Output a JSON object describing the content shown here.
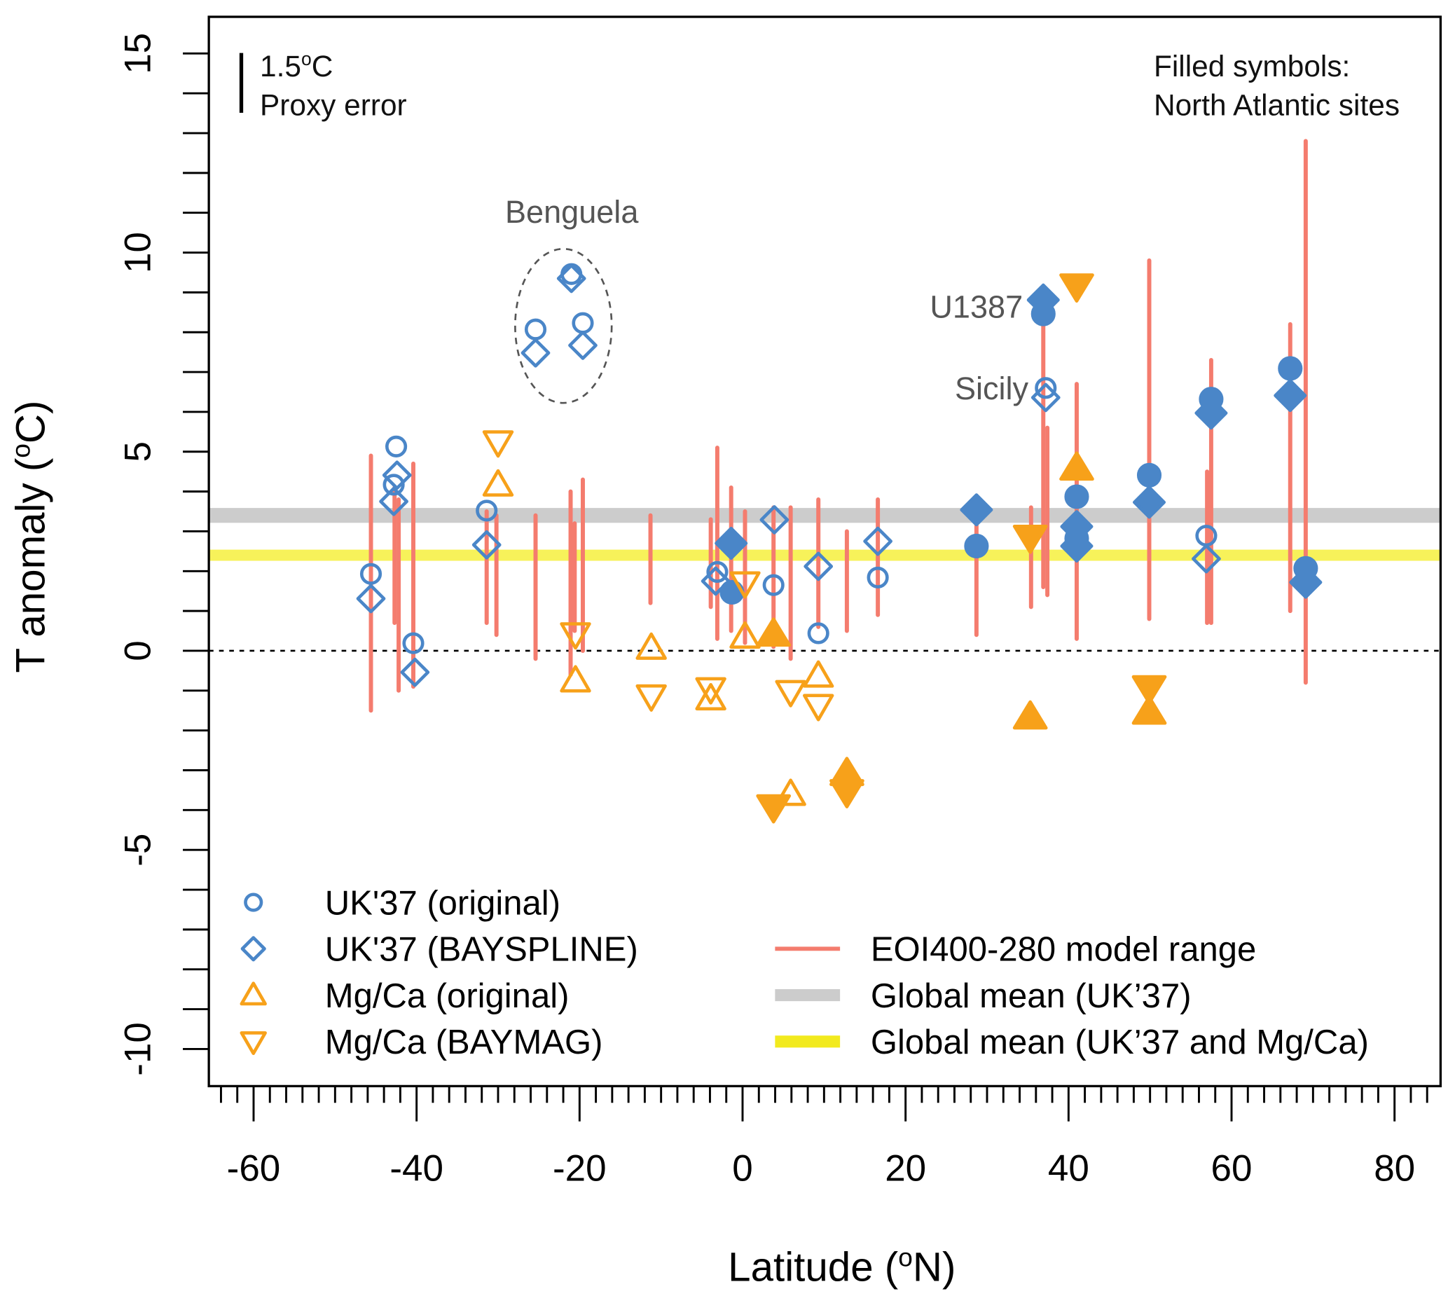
{
  "chart_data": {
    "type": "scatter",
    "xlabel": {
      "prefix": "Latitude (",
      "sup": "o",
      "suffix": "N)"
    },
    "ylabel": {
      "prefix": "T anomaly (",
      "sup": "o",
      "suffix": "C)"
    },
    "xlim": [
      -65.9,
      85.8
    ],
    "ylim": [
      -10.9,
      15.9
    ],
    "xticks": [
      -60,
      -40,
      -20,
      0,
      20,
      40,
      60,
      80
    ],
    "xminor_step": 2,
    "yticks": [
      -10,
      -5,
      0,
      5,
      10,
      15
    ],
    "yminor_step": 1,
    "zero_line": 0,
    "colors": {
      "blue": "#4a86c8",
      "orange": "#f7a11a",
      "model": "#f47c6e",
      "grey": "#cccccc",
      "yellow": "#f7f25a"
    },
    "series": [
      {
        "name": "UK'37 (original)",
        "marker": "circle",
        "color": "#4a86c8",
        "open": [
          [
            -45.6,
            1.93
          ],
          [
            -42.5,
            5.13
          ],
          [
            -42.8,
            4.17
          ],
          [
            -40.4,
            0.19
          ],
          [
            -31.4,
            3.52
          ],
          [
            -25.4,
            8.07
          ],
          [
            -21.0,
            9.46
          ],
          [
            -19.6,
            8.23
          ],
          [
            -3.1,
            1.98
          ],
          [
            3.8,
            1.65
          ],
          [
            9.3,
            0.44
          ],
          [
            16.6,
            1.84
          ],
          [
            37.2,
            6.6
          ],
          [
            56.9,
            2.89
          ]
        ],
        "filled": [
          [
            -1.3,
            1.47
          ],
          [
            28.7,
            2.63
          ],
          [
            36.9,
            8.46
          ],
          [
            41.0,
            3.87
          ],
          [
            41.0,
            2.82
          ],
          [
            49.9,
            4.41
          ],
          [
            57.5,
            6.32
          ],
          [
            67.2,
            7.09
          ],
          [
            69.1,
            2.07
          ]
        ]
      },
      {
        "name": "UK'37 (BAYSPLINE)",
        "marker": "diamond",
        "color": "#4a86c8",
        "open": [
          [
            -45.6,
            1.31
          ],
          [
            -42.4,
            4.41
          ],
          [
            -42.8,
            3.75
          ],
          [
            -40.2,
            -0.54
          ],
          [
            -31.4,
            2.66
          ],
          [
            -25.4,
            7.48
          ],
          [
            -21.0,
            9.35
          ],
          [
            -19.6,
            7.67
          ],
          [
            -3.3,
            1.75
          ],
          [
            3.9,
            3.29
          ],
          [
            9.3,
            2.12
          ],
          [
            16.6,
            2.75
          ],
          [
            37.2,
            6.36
          ],
          [
            56.9,
            2.31
          ]
        ],
        "filled": [
          [
            -1.4,
            2.7
          ],
          [
            28.7,
            3.54
          ],
          [
            36.9,
            8.81
          ],
          [
            41.0,
            3.12
          ],
          [
            41.0,
            2.63
          ],
          [
            49.9,
            3.73
          ],
          [
            57.5,
            5.97
          ],
          [
            67.2,
            6.41
          ],
          [
            69.1,
            1.72
          ]
        ]
      },
      {
        "name": "Mg/Ca (original)",
        "marker": "triangle-up",
        "color": "#f7a11a",
        "open": [
          [
            -30.0,
            4.17
          ],
          [
            -20.5,
            -0.75
          ],
          [
            -11.2,
            0.07
          ],
          [
            -3.9,
            -1.2
          ],
          [
            0.3,
            0.35
          ],
          [
            5.9,
            -3.6
          ],
          [
            9.3,
            -0.63
          ]
        ],
        "filled": [
          [
            3.8,
            0.4
          ],
          [
            12.8,
            -3.1
          ],
          [
            35.3,
            -1.68
          ],
          [
            41.0,
            4.57
          ],
          [
            49.9,
            -1.56
          ]
        ]
      },
      {
        "name": "Mg/Ca (BAYMAG)",
        "marker": "triangle-down",
        "color": "#f7a11a",
        "open": [
          [
            -30.0,
            5.24
          ],
          [
            -20.5,
            0.42
          ],
          [
            -11.2,
            -1.14
          ],
          [
            -3.9,
            -0.96
          ],
          [
            0.3,
            1.7
          ],
          [
            5.9,
            -1.03
          ],
          [
            9.3,
            -1.38
          ]
        ],
        "filled": [
          [
            3.8,
            -3.9
          ],
          [
            12.8,
            -3.52
          ],
          [
            35.3,
            2.87
          ],
          [
            41.0,
            9.18
          ],
          [
            49.9,
            -0.91
          ]
        ]
      }
    ],
    "model_range": {
      "name": "EOI400-280 model range",
      "ranges": [
        [
          -45.6,
          -1.5,
          4.9
        ],
        [
          -42.7,
          0.7,
          4.1
        ],
        [
          -42.2,
          -1.0,
          3.8
        ],
        [
          -40.4,
          -0.9,
          4.7
        ],
        [
          -31.4,
          0.7,
          3.5
        ],
        [
          -30.2,
          0.4,
          3.4
        ],
        [
          -25.4,
          -0.2,
          3.4
        ],
        [
          -21.1,
          -0.6,
          4.0
        ],
        [
          -20.6,
          0.5,
          3.2
        ],
        [
          -19.6,
          0.0,
          4.3
        ],
        [
          -11.3,
          1.2,
          3.4
        ],
        [
          -3.9,
          1.1,
          3.3
        ],
        [
          -3.1,
          0.3,
          5.1
        ],
        [
          -1.4,
          0.5,
          4.1
        ],
        [
          0.3,
          0.2,
          3.5
        ],
        [
          3.8,
          0.1,
          3.6
        ],
        [
          5.9,
          -0.2,
          3.6
        ],
        [
          9.3,
          0.6,
          3.8
        ],
        [
          12.8,
          0.5,
          3.0
        ],
        [
          16.6,
          0.9,
          3.8
        ],
        [
          28.7,
          0.4,
          3.6
        ],
        [
          35.4,
          1.1,
          3.6
        ],
        [
          36.9,
          1.6,
          8.5
        ],
        [
          37.4,
          1.4,
          5.6
        ],
        [
          41.0,
          0.3,
          6.7
        ],
        [
          49.9,
          0.8,
          9.8
        ],
        [
          57.0,
          0.7,
          4.5
        ],
        [
          57.5,
          0.7,
          7.3
        ],
        [
          67.2,
          1.0,
          8.2
        ],
        [
          69.1,
          -0.8,
          12.8
        ]
      ]
    },
    "global_means": [
      {
        "name": "Global mean (UK’37)",
        "value": 3.4,
        "color": "#cccccc"
      },
      {
        "name": "Global mean (UK’37 and Mg/Ca)",
        "value": 2.4,
        "color": "#f7f25a"
      }
    ],
    "annotations": {
      "benguela": "Benguela",
      "u1387": "U1387",
      "sicily": "Sicily",
      "filled_note_1": "Filled symbols:",
      "filled_note_2": "North Atlantic sites",
      "proxy_error_value": 1.5,
      "proxy_error_num": "1.5",
      "proxy_error_sup": "o",
      "proxy_error_unit": "C",
      "proxy_error_label": "Proxy error"
    }
  }
}
